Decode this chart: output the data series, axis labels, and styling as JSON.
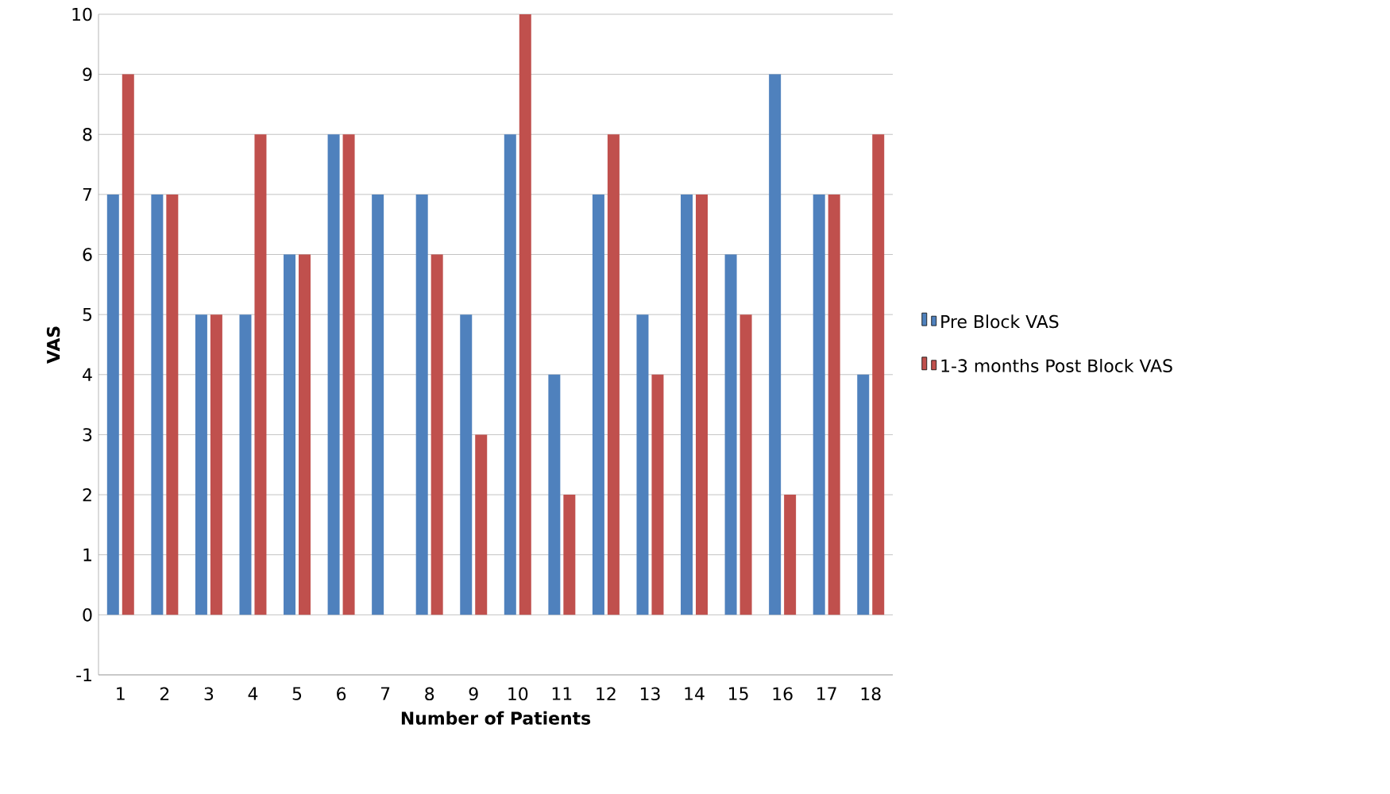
{
  "chart_data": {
    "type": "bar",
    "xlabel": "Number of Patients",
    "ylabel": "VAS",
    "categories": [
      "1",
      "2",
      "3",
      "4",
      "5",
      "6",
      "7",
      "8",
      "9",
      "10",
      "11",
      "12",
      "13",
      "14",
      "15",
      "16",
      "17",
      "18"
    ],
    "series": [
      {
        "name": "Pre Block VAS",
        "color": "#4f81bd",
        "values": [
          7,
          7,
          5,
          5,
          6,
          8,
          7,
          7,
          5,
          8,
          4,
          7,
          5,
          7,
          6,
          9,
          7,
          4
        ]
      },
      {
        "name": "1-3 months Post Block VAS",
        "color": "#c0504d",
        "values": [
          9,
          7,
          5,
          8,
          6,
          8,
          0,
          6,
          3,
          10,
          2,
          8,
          4,
          7,
          5,
          2,
          7,
          8
        ]
      }
    ],
    "ylim": [
      -1,
      10
    ],
    "yticks": [
      -1,
      0,
      1,
      2,
      3,
      4,
      5,
      6,
      7,
      8,
      9,
      10
    ],
    "grid": "y",
    "legend": "right"
  }
}
